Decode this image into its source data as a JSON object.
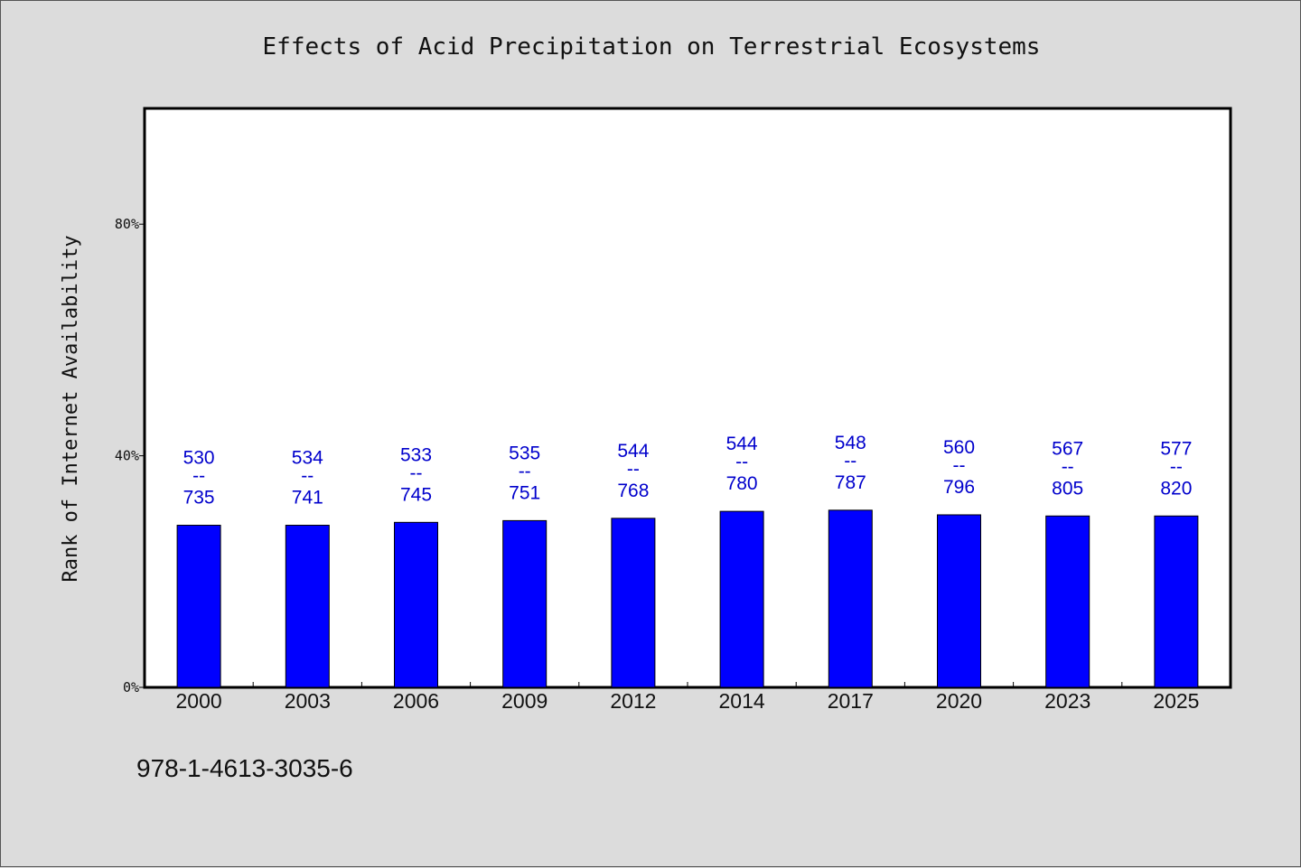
{
  "chart_data": {
    "type": "bar",
    "title": "Effects of Acid Precipitation on Terrestrial Ecosystems",
    "xlabel": "",
    "ylabel": "Rank of Internet Availability",
    "categories": [
      "2000",
      "2003",
      "2006",
      "2009",
      "2012",
      "2014",
      "2017",
      "2020",
      "2023",
      "2025"
    ],
    "values": [
      28.0,
      28.0,
      28.5,
      28.8,
      29.2,
      30.4,
      30.6,
      29.8,
      29.6,
      29.6
    ],
    "data_labels": [
      {
        "top": "530",
        "sep": "--",
        "bottom": "735"
      },
      {
        "top": "534",
        "sep": "--",
        "bottom": "741"
      },
      {
        "top": "533",
        "sep": "--",
        "bottom": "745"
      },
      {
        "top": "535",
        "sep": "--",
        "bottom": "751"
      },
      {
        "top": "544",
        "sep": "--",
        "bottom": "768"
      },
      {
        "top": "544",
        "sep": "--",
        "bottom": "780"
      },
      {
        "top": "548",
        "sep": "--",
        "bottom": "787"
      },
      {
        "top": "560",
        "sep": "--",
        "bottom": "796"
      },
      {
        "top": "567",
        "sep": "--",
        "bottom": "805"
      },
      {
        "top": "577",
        "sep": "--",
        "bottom": "820"
      }
    ],
    "ylim": [
      0,
      100
    ],
    "yticks": [
      0,
      40,
      80
    ],
    "ytick_labels": [
      "0%",
      "40%",
      "80%"
    ],
    "grid": false,
    "colors": {
      "bar": "#0000ff",
      "label": "#0000cc",
      "background": "#dcdcdc",
      "plot": "#ffffff"
    }
  },
  "footnote": "978-1-4613-3035-6"
}
